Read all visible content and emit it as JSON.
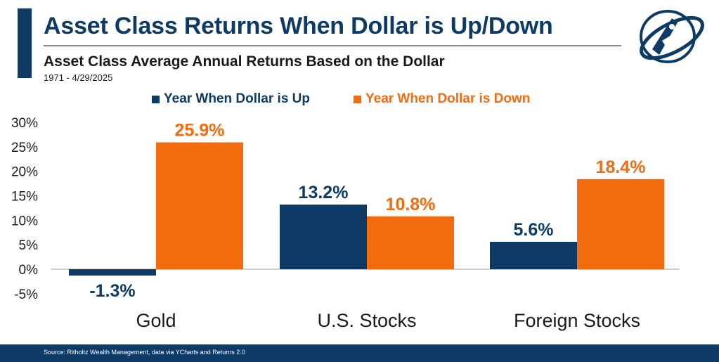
{
  "header": {
    "title": "Asset Class Returns When Dollar is Up/Down",
    "subtitle": "Asset Class Average Annual Returns Based on the Dollar",
    "date_range": "1971 - 4/29/2025"
  },
  "legend": [
    {
      "label": "Year When Dollar is Up",
      "color": "#0d3b66"
    },
    {
      "label": "Year When Dollar is Down",
      "color": "#f26b0f"
    }
  ],
  "footer": {
    "source": "Source: Ritholtz Wealth Management, data via YCharts and Returns 2.0"
  },
  "colors": {
    "navy": "#0d3b66",
    "orange": "#f26b0f"
  },
  "chart_data": {
    "type": "bar",
    "categories": [
      "Gold",
      "U.S. Stocks",
      "Foreign Stocks"
    ],
    "series": [
      {
        "name": "Year When Dollar is Up",
        "values": [
          -1.3,
          13.2,
          5.6
        ],
        "labels": [
          "-1.3%",
          "13.2%",
          "5.6%"
        ],
        "color": "#0d3b66"
      },
      {
        "name": "Year When Dollar is Down",
        "values": [
          25.9,
          10.8,
          18.4
        ],
        "labels": [
          "25.9%",
          "10.8%",
          "18.4%"
        ],
        "color": "#f26b0f"
      }
    ],
    "yticks": [
      30,
      25,
      20,
      15,
      10,
      5,
      0,
      -5
    ],
    "ytick_labels": [
      "30%",
      "25%",
      "20%",
      "15%",
      "10%",
      "5%",
      "0%",
      "-5%"
    ],
    "ylim": [
      -5,
      30
    ],
    "grid": false,
    "legend_position": "top"
  }
}
